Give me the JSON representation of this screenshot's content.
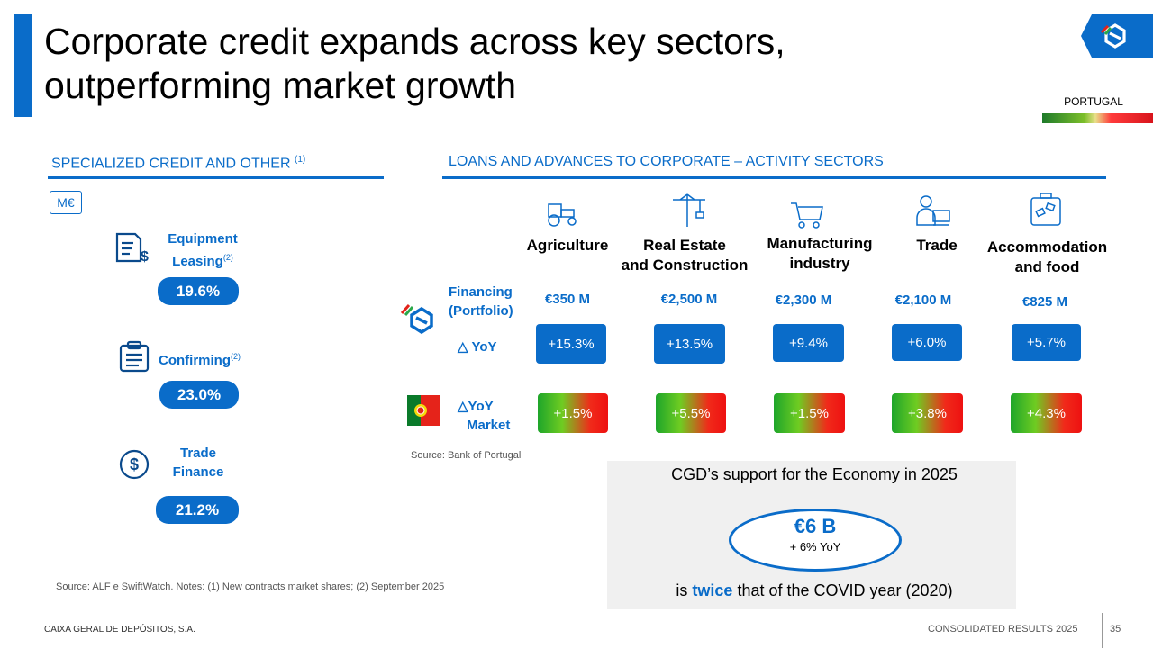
{
  "title": "Corporate credit expands across key sectors, outperforming market growth",
  "country_label": "PORTUGAL",
  "left_panel": {
    "heading": "SPECIALIZED CREDIT AND OTHER",
    "heading_note": "(1)",
    "unit": "M€",
    "items": [
      {
        "label_line1": "Equipment",
        "label_line2": "Leasing",
        "note": "(2)",
        "value": "19.6%",
        "icon": "invoice-dollar-icon"
      },
      {
        "label_line1": "Confirming",
        "label_line2": "",
        "note": "(2)",
        "value": "23.0%",
        "icon": "clipboard-icon"
      },
      {
        "label_line1": "Trade",
        "label_line2": "Finance",
        "note": "",
        "value": "21.2%",
        "icon": "dollar-circle-icon"
      }
    ],
    "source": "Source: ALF e SwiftWatch. Notes: (1) New contracts market shares; (2) September 2025"
  },
  "right_panel": {
    "heading": "LOANS AND ADVANCES TO CORPORATE – ACTIVITY SECTORS",
    "row_labels": {
      "financing_line1": "Financing",
      "financing_line2": "(Portfolio)",
      "yoy": "YoY",
      "yoy_market_line1": "YoY",
      "yoy_market_line2": "Market"
    },
    "sectors": [
      {
        "name_line1": "Agriculture",
        "name_line2": "",
        "financing": "€350 M",
        "yoy": "+15.3%",
        "market_yoy": "+1.5%",
        "icon": "tractor-icon"
      },
      {
        "name_line1": "Real Estate",
        "name_line2": "and Construction",
        "financing": "€2,500 M",
        "yoy": "+13.5%",
        "market_yoy": "+5.5%",
        "icon": "crane-icon"
      },
      {
        "name_line1": "Manufacturing",
        "name_line2": "industry",
        "financing": "€2,300 M",
        "yoy": "+9.4%",
        "market_yoy": "+1.5%",
        "icon": "cart-icon"
      },
      {
        "name_line1": "Trade",
        "name_line2": "",
        "financing": "€2,100 M",
        "yoy": "+6.0%",
        "market_yoy": "+3.8%",
        "icon": "person-computer-icon"
      },
      {
        "name_line1": "Accommodation",
        "name_line2": "and food",
        "financing": "€825 M",
        "yoy": "+5.7%",
        "market_yoy": "+4.3%",
        "icon": "suitcase-icon"
      }
    ],
    "source": "Source: Bank of Portugal"
  },
  "support": {
    "heading": "CGD’s support for the Economy in 2025",
    "amount": "€6 B",
    "amount_sub": "+ 6% YoY",
    "footer_pre": "is ",
    "footer_emph": "twice",
    "footer_post": " that of the COVID year (2020)"
  },
  "footer": {
    "company": "CAIXA GERAL DE DEPÓSITOS, S.A.",
    "report": "CONSOLIDATED RESULTS 2025",
    "page": "35"
  },
  "colors": {
    "brand_blue": "#0a6cc9",
    "market_green": "#1ea52a",
    "market_red": "#ee1111",
    "support_bg": "#f0f0f0"
  }
}
